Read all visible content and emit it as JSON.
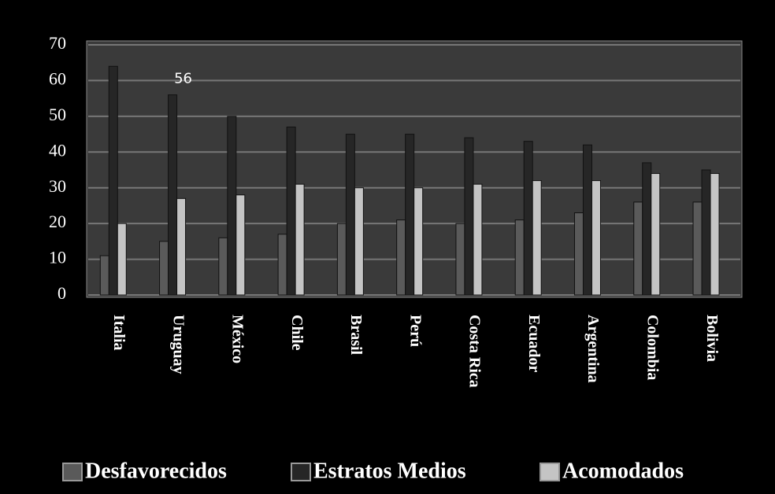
{
  "chart_data": {
    "type": "bar",
    "categories": [
      "Italia",
      "Uruguay",
      "México",
      "Chile",
      "Brasil",
      "Perú",
      "Costa Rica",
      "Ecuador",
      "Argentina",
      "Colombia",
      "Bolivia"
    ],
    "series": [
      {
        "name": "Desfavorecidos",
        "color": "#5a5a5a",
        "values": [
          11,
          15,
          16,
          17,
          20,
          21,
          20,
          21,
          23,
          26,
          26
        ]
      },
      {
        "name": "Estratos Medios",
        "color": "#262626",
        "values": [
          64,
          56,
          50,
          47,
          45,
          45,
          44,
          43,
          42,
          37,
          35
        ],
        "value_labels": [
          null,
          "56",
          null,
          null,
          null,
          null,
          null,
          null,
          null,
          null,
          null
        ]
      },
      {
        "name": "Acomodados",
        "color": "#c4c4c4",
        "values": [
          20,
          27,
          28,
          31,
          30,
          30,
          31,
          32,
          32,
          34,
          34
        ]
      }
    ],
    "ylim": [
      0,
      70
    ],
    "yticks": [
      0,
      10,
      20,
      30,
      40,
      50,
      60,
      70
    ],
    "grid": true,
    "legend": "bottom"
  }
}
